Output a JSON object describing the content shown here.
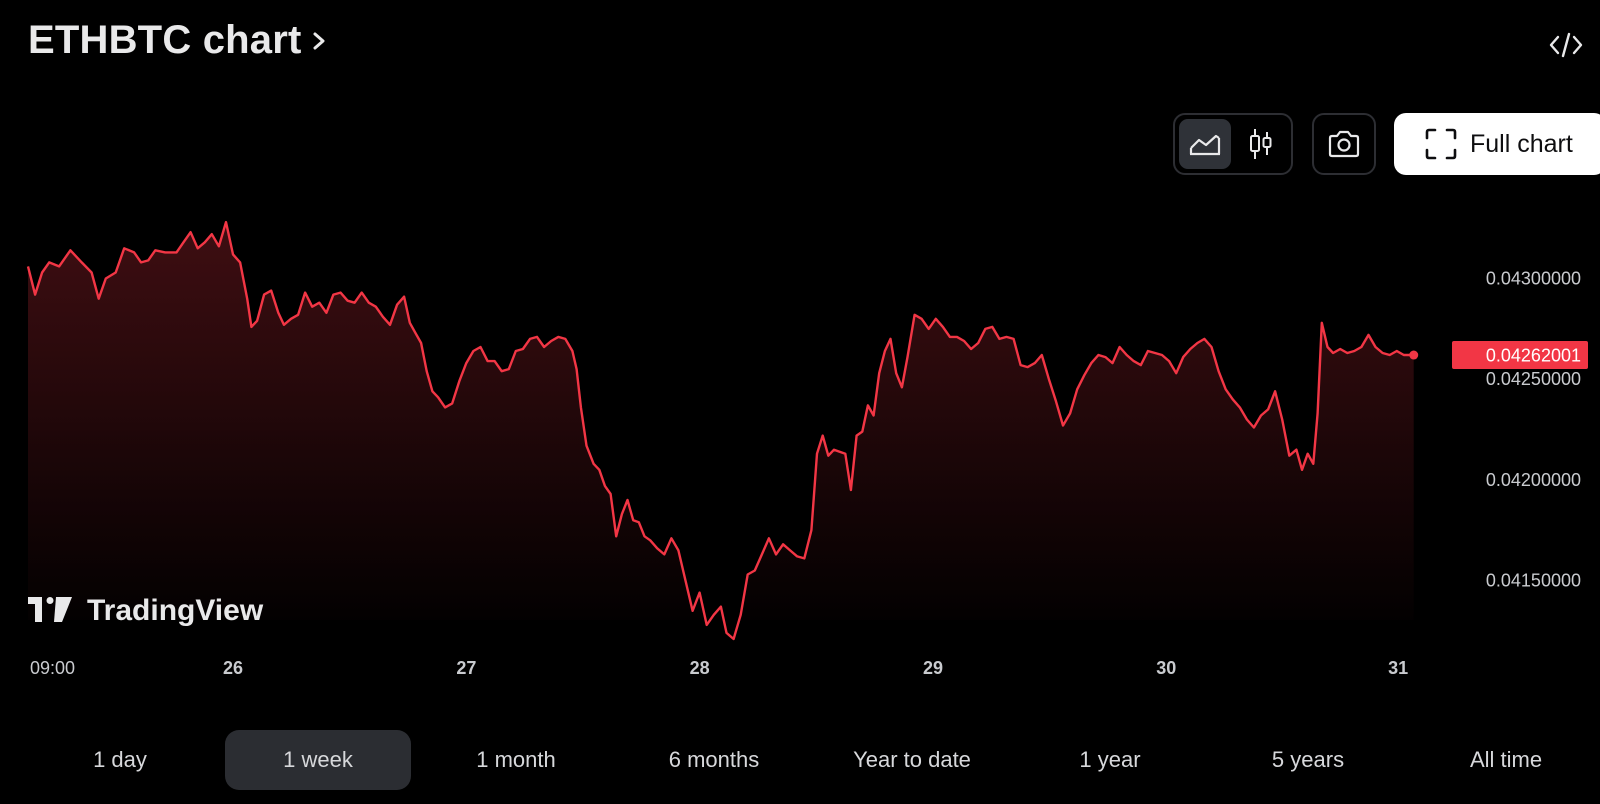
{
  "header": {
    "title": "ETHBTC chart",
    "chevron_icon": "chevron-right-icon",
    "embed_icon": "code-embed-icon"
  },
  "toolbar": {
    "line_chart_icon": "line-chart-icon",
    "candles_icon": "candlestick-icon",
    "camera_icon": "camera-icon",
    "full_chart_icon": "fullscreen-icon",
    "full_chart_label": "Full chart",
    "active_chart_type": "line"
  },
  "watermark": {
    "brand": "TradingView",
    "icon": "tradingview-logo-icon"
  },
  "colors": {
    "background": "#000000",
    "line": "#f23645",
    "price_label_bg": "#f23645",
    "axis_text": "#c9cbcf",
    "active_button_bg": "#2b2d32"
  },
  "chart_data": {
    "type": "area",
    "y_ticks": [
      {
        "value": 0.043,
        "label": "0.04300000"
      },
      {
        "value": 0.0425,
        "label": "0.04250000"
      },
      {
        "value": 0.042,
        "label": "0.04200000"
      },
      {
        "value": 0.0415,
        "label": "0.04150000"
      }
    ],
    "x_ticks": [
      {
        "t": 0,
        "label": "09:00",
        "bold": false
      },
      {
        "t": 0.145,
        "label": "26",
        "bold": true
      },
      {
        "t": 0.31,
        "label": "27",
        "bold": true
      },
      {
        "t": 0.475,
        "label": "28",
        "bold": true
      },
      {
        "t": 0.64,
        "label": "29",
        "bold": true
      },
      {
        "t": 0.805,
        "label": "30",
        "bold": true
      },
      {
        "t": 0.969,
        "label": "31",
        "bold": true
      }
    ],
    "last_price": {
      "value": 0.04262001,
      "label": "0.04262001"
    },
    "ylim": [
      0.04118,
      0.04339
    ],
    "series": [
      {
        "values": [
          [
            0.0,
            0.04306
          ],
          [
            0.005,
            0.04292
          ],
          [
            0.01,
            0.04303
          ],
          [
            0.015,
            0.04308
          ],
          [
            0.022,
            0.04306
          ],
          [
            0.03,
            0.04314
          ],
          [
            0.038,
            0.04308
          ],
          [
            0.045,
            0.04303
          ],
          [
            0.05,
            0.0429
          ],
          [
            0.055,
            0.043
          ],
          [
            0.062,
            0.04303
          ],
          [
            0.068,
            0.04315
          ],
          [
            0.075,
            0.04313
          ],
          [
            0.08,
            0.04308
          ],
          [
            0.085,
            0.04309
          ],
          [
            0.09,
            0.04314
          ],
          [
            0.097,
            0.04313
          ],
          [
            0.105,
            0.04313
          ],
          [
            0.11,
            0.04318
          ],
          [
            0.115,
            0.04323
          ],
          [
            0.12,
            0.04315
          ],
          [
            0.125,
            0.04318
          ],
          [
            0.13,
            0.04322
          ],
          [
            0.135,
            0.04316
          ],
          [
            0.14,
            0.04328
          ],
          [
            0.145,
            0.04312
          ],
          [
            0.15,
            0.04308
          ],
          [
            0.155,
            0.0429
          ],
          [
            0.158,
            0.04276
          ],
          [
            0.162,
            0.04279
          ],
          [
            0.167,
            0.04292
          ],
          [
            0.172,
            0.04294
          ],
          [
            0.177,
            0.04283
          ],
          [
            0.181,
            0.04277
          ],
          [
            0.186,
            0.0428
          ],
          [
            0.191,
            0.04282
          ],
          [
            0.196,
            0.04293
          ],
          [
            0.201,
            0.04286
          ],
          [
            0.206,
            0.04288
          ],
          [
            0.211,
            0.04283
          ],
          [
            0.216,
            0.04292
          ],
          [
            0.221,
            0.04293
          ],
          [
            0.226,
            0.04289
          ],
          [
            0.231,
            0.04288
          ],
          [
            0.236,
            0.04293
          ],
          [
            0.241,
            0.04288
          ],
          [
            0.246,
            0.04286
          ],
          [
            0.251,
            0.04281
          ],
          [
            0.256,
            0.04277
          ],
          [
            0.261,
            0.04287
          ],
          [
            0.266,
            0.04291
          ],
          [
            0.27,
            0.04278
          ],
          [
            0.274,
            0.04273
          ],
          [
            0.278,
            0.04268
          ],
          [
            0.282,
            0.04254
          ],
          [
            0.286,
            0.04244
          ],
          [
            0.29,
            0.04241
          ],
          [
            0.295,
            0.04236
          ],
          [
            0.3,
            0.04238
          ],
          [
            0.305,
            0.04249
          ],
          [
            0.31,
            0.04258
          ],
          [
            0.315,
            0.04264
          ],
          [
            0.32,
            0.04266
          ],
          [
            0.325,
            0.04259
          ],
          [
            0.33,
            0.04259
          ],
          [
            0.335,
            0.04254
          ],
          [
            0.34,
            0.04255
          ],
          [
            0.345,
            0.04264
          ],
          [
            0.35,
            0.04265
          ],
          [
            0.355,
            0.0427
          ],
          [
            0.36,
            0.04271
          ],
          [
            0.365,
            0.04266
          ],
          [
            0.37,
            0.04269
          ],
          [
            0.375,
            0.04271
          ],
          [
            0.38,
            0.0427
          ],
          [
            0.385,
            0.04264
          ],
          [
            0.388,
            0.04255
          ],
          [
            0.391,
            0.04236
          ],
          [
            0.395,
            0.04217
          ],
          [
            0.4,
            0.04208
          ],
          [
            0.404,
            0.04205
          ],
          [
            0.408,
            0.04197
          ],
          [
            0.412,
            0.04193
          ],
          [
            0.416,
            0.04172
          ],
          [
            0.42,
            0.04183
          ],
          [
            0.424,
            0.0419
          ],
          [
            0.428,
            0.0418
          ],
          [
            0.432,
            0.04179
          ],
          [
            0.436,
            0.04172
          ],
          [
            0.44,
            0.0417
          ],
          [
            0.445,
            0.04166
          ],
          [
            0.45,
            0.04163
          ],
          [
            0.455,
            0.04171
          ],
          [
            0.46,
            0.04165
          ],
          [
            0.465,
            0.0415
          ],
          [
            0.47,
            0.04135
          ],
          [
            0.475,
            0.04144
          ],
          [
            0.48,
            0.04128
          ],
          [
            0.485,
            0.04133
          ],
          [
            0.49,
            0.04137
          ],
          [
            0.494,
            0.04124
          ],
          [
            0.499,
            0.04121
          ],
          [
            0.504,
            0.04133
          ],
          [
            0.509,
            0.04153
          ],
          [
            0.514,
            0.04155
          ],
          [
            0.519,
            0.04163
          ],
          [
            0.524,
            0.04171
          ],
          [
            0.529,
            0.04163
          ],
          [
            0.534,
            0.04168
          ],
          [
            0.539,
            0.04165
          ],
          [
            0.544,
            0.04162
          ],
          [
            0.549,
            0.04161
          ],
          [
            0.554,
            0.04175
          ],
          [
            0.558,
            0.04213
          ],
          [
            0.562,
            0.04222
          ],
          [
            0.566,
            0.04212
          ],
          [
            0.57,
            0.04215
          ],
          [
            0.574,
            0.04214
          ],
          [
            0.578,
            0.04213
          ],
          [
            0.582,
            0.04195
          ],
          [
            0.586,
            0.04222
          ],
          [
            0.59,
            0.04224
          ],
          [
            0.594,
            0.04237
          ],
          [
            0.598,
            0.04232
          ],
          [
            0.602,
            0.04253
          ],
          [
            0.606,
            0.04264
          ],
          [
            0.61,
            0.0427
          ],
          [
            0.614,
            0.04253
          ],
          [
            0.618,
            0.04246
          ],
          [
            0.622,
            0.04261
          ],
          [
            0.627,
            0.04282
          ],
          [
            0.632,
            0.0428
          ],
          [
            0.637,
            0.04275
          ],
          [
            0.642,
            0.0428
          ],
          [
            0.647,
            0.04276
          ],
          [
            0.652,
            0.04271
          ],
          [
            0.657,
            0.04271
          ],
          [
            0.662,
            0.04269
          ],
          [
            0.667,
            0.04265
          ],
          [
            0.672,
            0.04268
          ],
          [
            0.677,
            0.04275
          ],
          [
            0.682,
            0.04276
          ],
          [
            0.687,
            0.0427
          ],
          [
            0.692,
            0.04271
          ],
          [
            0.697,
            0.0427
          ],
          [
            0.702,
            0.04257
          ],
          [
            0.707,
            0.04256
          ],
          [
            0.712,
            0.04258
          ],
          [
            0.717,
            0.04262
          ],
          [
            0.722,
            0.0425
          ],
          [
            0.727,
            0.04239
          ],
          [
            0.732,
            0.04227
          ],
          [
            0.737,
            0.04233
          ],
          [
            0.742,
            0.04245
          ],
          [
            0.747,
            0.04252
          ],
          [
            0.752,
            0.04258
          ],
          [
            0.757,
            0.04262
          ],
          [
            0.762,
            0.04261
          ],
          [
            0.767,
            0.04258
          ],
          [
            0.772,
            0.04266
          ],
          [
            0.777,
            0.04262
          ],
          [
            0.782,
            0.04259
          ],
          [
            0.787,
            0.04257
          ],
          [
            0.792,
            0.04264
          ],
          [
            0.797,
            0.04263
          ],
          [
            0.802,
            0.04262
          ],
          [
            0.807,
            0.04259
          ],
          [
            0.812,
            0.04253
          ],
          [
            0.817,
            0.04261
          ],
          [
            0.822,
            0.04265
          ],
          [
            0.827,
            0.04268
          ],
          [
            0.832,
            0.0427
          ],
          [
            0.837,
            0.04266
          ],
          [
            0.842,
            0.04254
          ],
          [
            0.847,
            0.04245
          ],
          [
            0.852,
            0.0424
          ],
          [
            0.857,
            0.04236
          ],
          [
            0.862,
            0.0423
          ],
          [
            0.867,
            0.04226
          ],
          [
            0.872,
            0.04232
          ],
          [
            0.877,
            0.04235
          ],
          [
            0.882,
            0.04244
          ],
          [
            0.887,
            0.0423
          ],
          [
            0.892,
            0.04212
          ],
          [
            0.897,
            0.04215
          ],
          [
            0.901,
            0.04205
          ],
          [
            0.905,
            0.04213
          ],
          [
            0.909,
            0.04208
          ],
          [
            0.912,
            0.04233
          ],
          [
            0.915,
            0.04278
          ],
          [
            0.919,
            0.04266
          ],
          [
            0.923,
            0.04263
          ],
          [
            0.928,
            0.04265
          ],
          [
            0.933,
            0.04263
          ],
          [
            0.938,
            0.04264
          ],
          [
            0.943,
            0.04266
          ],
          [
            0.948,
            0.04272
          ],
          [
            0.953,
            0.04266
          ],
          [
            0.958,
            0.04263
          ],
          [
            0.963,
            0.04262
          ],
          [
            0.968,
            0.04264
          ],
          [
            0.973,
            0.04262
          ],
          [
            0.98,
            0.04262001
          ]
        ]
      }
    ]
  },
  "ranges": {
    "active": "1 week",
    "items": [
      "1 day",
      "1 week",
      "1 month",
      "6 months",
      "Year to date",
      "1 year",
      "5 years",
      "All time"
    ]
  }
}
